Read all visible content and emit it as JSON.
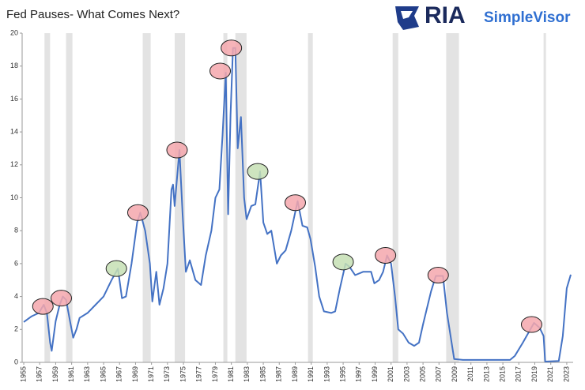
{
  "chart_data": {
    "type": "line",
    "title": "Fed Pauses- What Comes Next?",
    "logo": {
      "brand": "RIA",
      "product": "SimpleVisor"
    },
    "series": [
      {
        "color": "#4472c4",
        "x": [
          1955,
          1956,
          1956.9,
          1957.5,
          1957.9,
          1958.3,
          1958.5,
          1959.0,
          1959.5,
          1959.9,
          1960.3,
          1960.8,
          1961.2,
          1961.6,
          1962,
          1963,
          1964,
          1965,
          1966,
          1966.8,
          1967.3,
          1967.8,
          1968.5,
          1969.2,
          1969.6,
          1970.2,
          1970.8,
          1971.1,
          1971.6,
          1972.0,
          1972.5,
          1973.0,
          1973.5,
          1973.7,
          1973.9,
          1974.5,
          1974.9,
          1975.3,
          1975.8,
          1976.5,
          1977.2,
          1977.8,
          1978.5,
          1979,
          1979.5,
          1979.9,
          1980.3,
          1980.6,
          1980.9,
          1981.2,
          1981.5,
          1981.8,
          1982.2,
          1982.6,
          1982.9,
          1983.5,
          1984.0,
          1984.6,
          1985.0,
          1985.5,
          1986.0,
          1986.7,
          1987.2,
          1987.8,
          1988.5,
          1989.3,
          1989.9,
          1990.5,
          1990.9,
          1991.5,
          1992.0,
          1992.6,
          1993.5,
          1994.0,
          1994.6,
          1995.3,
          1995.8,
          1996.5,
          1997.5,
          1998.5,
          1998.9,
          1999.5,
          2000.0,
          2000.5,
          2001.0,
          2001.5,
          2001.9,
          2002.5,
          2003.2,
          2003.9,
          2004.5,
          2005.0,
          2006.0,
          2006.6,
          2007.5,
          2008.0,
          2008.9,
          2010,
          2012,
          2015.9,
          2016.5,
          2017.5,
          2018.9,
          2019.6,
          2020.1,
          2020.3,
          2022.0,
          2022.5,
          2023.0,
          2023.5
        ],
        "values": [
          2.45,
          2.8,
          3.0,
          3.5,
          3.0,
          1.2,
          0.7,
          2.5,
          3.5,
          4.0,
          3.8,
          2.5,
          1.5,
          2.0,
          2.7,
          3.0,
          3.5,
          4.0,
          5.0,
          5.7,
          3.9,
          4.0,
          6.0,
          8.5,
          9.1,
          8.0,
          6.0,
          3.7,
          5.5,
          3.5,
          4.5,
          6.0,
          10.5,
          10.8,
          9.5,
          12.9,
          9.0,
          5.5,
          6.2,
          5.0,
          4.7,
          6.5,
          8.0,
          10.0,
          10.5,
          13.8,
          17.6,
          9.0,
          15.0,
          19.1,
          19.1,
          13.0,
          14.9,
          10.0,
          8.7,
          9.5,
          9.6,
          11.6,
          8.5,
          7.8,
          8.0,
          6.0,
          6.5,
          6.8,
          8.0,
          9.8,
          8.3,
          8.2,
          7.5,
          5.8,
          4.0,
          3.1,
          3.0,
          3.1,
          4.5,
          6.0,
          5.8,
          5.3,
          5.5,
          5.5,
          4.8,
          5.0,
          5.5,
          6.5,
          6.0,
          4.0,
          2.0,
          1.75,
          1.2,
          1.0,
          1.2,
          2.3,
          4.3,
          5.25,
          5.25,
          3.0,
          0.2,
          0.15,
          0.15,
          0.15,
          0.4,
          1.2,
          2.4,
          2.1,
          1.6,
          0.05,
          0.08,
          1.6,
          4.5,
          5.33
        ]
      }
    ],
    "shaded_periods": [
      [
        1957.6,
        1958.3
      ],
      [
        1960.3,
        1961.1
      ],
      [
        1969.9,
        1970.9
      ],
      [
        1973.9,
        1975.2
      ],
      [
        1980.0,
        1980.5
      ],
      [
        1981.5,
        1982.9
      ],
      [
        1990.6,
        1991.2
      ],
      [
        2001.2,
        2001.9
      ],
      [
        2007.9,
        2009.5
      ],
      [
        2020.1,
        2020.4
      ]
    ],
    "highlights": [
      {
        "x": 1957.4,
        "y": 3.4,
        "color": "#f4a7ad"
      },
      {
        "x": 1959.7,
        "y": 3.9,
        "color": "#f4a7ad"
      },
      {
        "x": 1966.6,
        "y": 5.7,
        "color": "#c6dfb4"
      },
      {
        "x": 1969.3,
        "y": 9.1,
        "color": "#f4a7ad"
      },
      {
        "x": 1974.2,
        "y": 12.9,
        "color": "#f4a7ad"
      },
      {
        "x": 1979.6,
        "y": 17.7,
        "color": "#f4a7ad"
      },
      {
        "x": 1981.0,
        "y": 19.1,
        "color": "#f4a7ad"
      },
      {
        "x": 1984.3,
        "y": 11.6,
        "color": "#c6dfb4"
      },
      {
        "x": 1989.0,
        "y": 9.7,
        "color": "#f4a7ad"
      },
      {
        "x": 1995.0,
        "y": 6.1,
        "color": "#c6dfb4"
      },
      {
        "x": 2000.3,
        "y": 6.5,
        "color": "#f4a7ad"
      },
      {
        "x": 2006.9,
        "y": 5.3,
        "color": "#f4a7ad"
      },
      {
        "x": 2018.6,
        "y": 2.3,
        "color": "#f4a7ad"
      }
    ],
    "xlim": [
      1954.8,
      2023.8
    ],
    "xticks": [
      1955,
      1957,
      1959,
      1961,
      1963,
      1965,
      1967,
      1969,
      1971,
      1973,
      1975,
      1977,
      1979,
      1981,
      1983,
      1985,
      1987,
      1989,
      1991,
      1993,
      1995,
      1997,
      1999,
      2001,
      2003,
      2005,
      2007,
      2009,
      2011,
      2013,
      2015,
      2017,
      2019,
      2021,
      2023
    ],
    "ylim": [
      0,
      20
    ],
    "yticks": [
      0,
      2,
      4,
      6,
      8,
      10,
      12,
      14,
      16,
      18,
      20
    ]
  }
}
